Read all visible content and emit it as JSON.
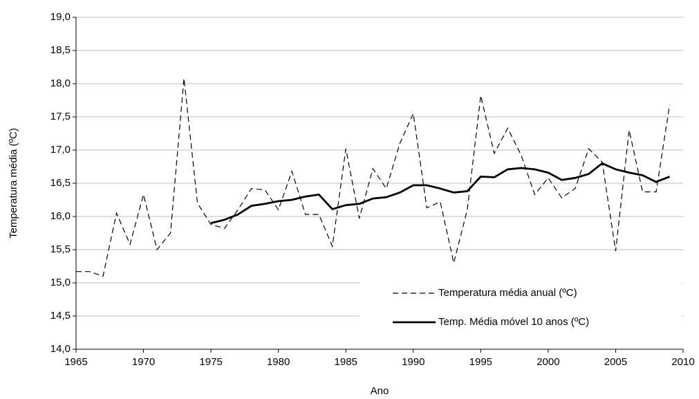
{
  "chart_data": {
    "type": "line",
    "x_label": "Ano",
    "y_label": "Temperatura média (ºC)",
    "x": [
      1965,
      1966,
      1967,
      1968,
      1969,
      1970,
      1971,
      1972,
      1973,
      1974,
      1975,
      1976,
      1977,
      1978,
      1979,
      1980,
      1981,
      1982,
      1983,
      1984,
      1985,
      1986,
      1987,
      1988,
      1989,
      1990,
      1991,
      1992,
      1993,
      1994,
      1995,
      1996,
      1997,
      1998,
      1999,
      2000,
      2001,
      2002,
      2003,
      2004,
      2005,
      2006,
      2007,
      2008,
      2009
    ],
    "series": [
      {
        "name": "Temperatura média anual (ºC)",
        "color": "#000000",
        "dashed": true,
        "values": [
          15.17,
          15.17,
          15.1,
          16.05,
          15.58,
          16.33,
          15.5,
          15.75,
          18.08,
          16.2,
          15.88,
          15.82,
          16.1,
          16.42,
          16.4,
          16.1,
          16.68,
          16.03,
          16.03,
          15.55,
          17.02,
          15.97,
          16.72,
          16.42,
          17.1,
          17.55,
          16.13,
          16.22,
          15.3,
          16.1,
          17.82,
          16.95,
          17.33,
          16.92,
          16.33,
          16.58,
          16.28,
          16.42,
          17.02,
          16.82,
          15.48,
          17.3,
          16.37,
          16.37,
          17.68
        ]
      },
      {
        "name": "Temp. Média móvel 10 anos (ºC)",
        "color": "#000000",
        "dashed": false,
        "values": [
          null,
          null,
          null,
          null,
          null,
          null,
          null,
          null,
          null,
          null,
          15.9,
          15.95,
          16.03,
          16.16,
          16.19,
          16.23,
          16.25,
          16.3,
          16.33,
          16.11,
          16.17,
          16.19,
          16.27,
          16.29,
          16.36,
          16.47,
          16.47,
          16.42,
          16.36,
          16.38,
          16.6,
          16.59,
          16.71,
          16.73,
          16.71,
          16.66,
          16.55,
          16.58,
          16.64,
          16.8,
          16.71,
          16.66,
          16.62,
          16.52,
          16.6
        ]
      }
    ],
    "xlim": [
      1965,
      2010
    ],
    "xticks": [
      1965,
      1970,
      1975,
      1980,
      1985,
      1990,
      1995,
      2000,
      2005,
      2010
    ],
    "ylim": [
      14,
      19
    ],
    "yticks": [
      {
        "value": 14,
        "label": "14,0"
      },
      {
        "value": 14.5,
        "label": "14,5"
      },
      {
        "value": 15,
        "label": "15,0"
      },
      {
        "value": 15.5,
        "label": "15,5"
      },
      {
        "value": 16,
        "label": "16,0"
      },
      {
        "value": 16.5,
        "label": "16,5"
      },
      {
        "value": 17,
        "label": "17,0"
      },
      {
        "value": 17.5,
        "label": "17,5"
      },
      {
        "value": 18,
        "label": "18,0"
      },
      {
        "value": 18.5,
        "label": "18,5"
      },
      {
        "value": 19,
        "label": "19,0"
      }
    ],
    "grid": true,
    "legend": "lower right"
  }
}
